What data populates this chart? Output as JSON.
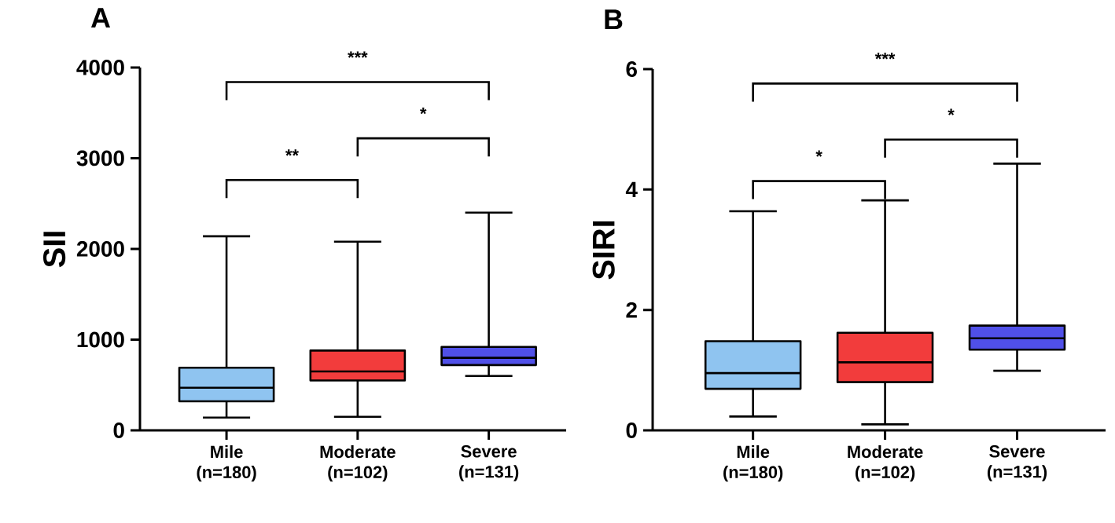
{
  "chart_data": [
    {
      "type": "box",
      "title": "A",
      "ylabel": "SII",
      "categories": [
        "Mile (n=180)",
        "Moderate (n=102)",
        "Severe (n=131)"
      ],
      "colors": [
        "#8fc4f0",
        "#f23c3c",
        "#5050e8"
      ],
      "boxes": [
        {
          "low": 140,
          "q1": 320,
          "median": 470,
          "q3": 690,
          "high": 2140
        },
        {
          "low": 150,
          "q1": 550,
          "median": 650,
          "q3": 880,
          "high": 2080
        },
        {
          "low": 600,
          "q1": 720,
          "median": 800,
          "q3": 920,
          "high": 2400
        }
      ],
      "ylim": [
        0,
        4000
      ],
      "yticks": [
        0,
        1000,
        2000,
        3000,
        4000
      ],
      "annotations": [
        "***",
        "**",
        "*"
      ]
    },
    {
      "type": "box",
      "title": "B",
      "ylabel": "SIRI",
      "categories": [
        "Mile (n=180)",
        "Moderate (n=102)",
        "Severe (n=131)"
      ],
      "colors": [
        "#8fc4f0",
        "#f23c3c",
        "#5050e8"
      ],
      "boxes": [
        {
          "low": 0.23,
          "q1": 0.69,
          "median": 0.95,
          "q3": 1.48,
          "high": 3.64
        },
        {
          "low": 0.1,
          "q1": 0.8,
          "median": 1.13,
          "q3": 1.62,
          "high": 3.82
        },
        {
          "low": 0.99,
          "q1": 1.34,
          "median": 1.53,
          "q3": 1.74,
          "high": 4.43
        }
      ],
      "ylim": [
        0,
        6
      ],
      "yticks": [
        0,
        2,
        4,
        6
      ],
      "annotations": [
        "***",
        "*",
        "*"
      ]
    }
  ]
}
